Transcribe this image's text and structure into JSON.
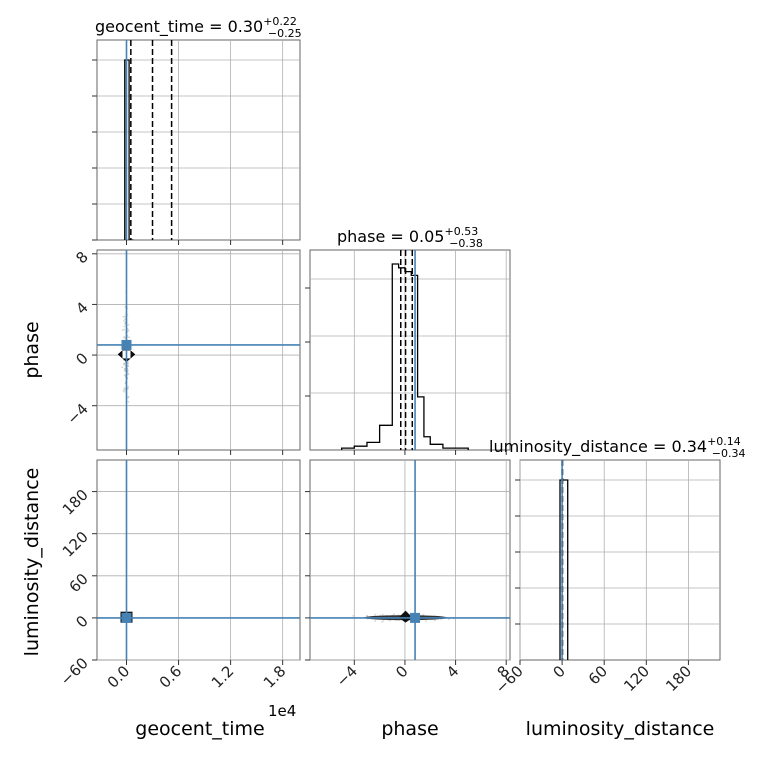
{
  "chart_data": {
    "type": "corner",
    "parameters": [
      "geocent_time",
      "phase",
      "luminosity_distance"
    ],
    "titles": [
      {
        "param": "geocent_time",
        "median": "0.30",
        "plus": "+0.22",
        "minus": "−0.25"
      },
      {
        "param": "phase",
        "median": "0.05",
        "plus": "+0.53",
        "minus": "−0.38"
      },
      {
        "param": "luminosity_distance",
        "median": "0.34",
        "plus": "+0.14",
        "minus": "−0.34"
      }
    ],
    "axis_labels": {
      "x": [
        "geocent_time",
        "phase",
        "luminosity_distance"
      ],
      "y_row2": "phase",
      "y_row3": "luminosity_distance"
    },
    "axis_offset_text": "1e4",
    "ranges": {
      "geocent_time": [
        -0.34,
        2.0
      ],
      "phase": [
        -7.5,
        8.3
      ],
      "luminosity_distance": [
        -60,
        225
      ]
    },
    "ticks": {
      "geocent_time": {
        "values": [
          0.0,
          0.6,
          1.2,
          1.8
        ],
        "labels": [
          "0.0",
          "0.6",
          "1.2",
          "1.8"
        ]
      },
      "phase": {
        "values": [
          -4,
          0,
          4,
          8
        ],
        "labels": [
          "−4",
          "0",
          "4",
          "8"
        ]
      },
      "luminosity_distance_y": {
        "values": [
          -60,
          0,
          60,
          120,
          180
        ],
        "labels": [
          "−60",
          "0",
          "60",
          "120",
          "180"
        ]
      },
      "luminosity_distance_x": {
        "values": [
          -60,
          0,
          60,
          120,
          180
        ],
        "labels": [
          "−60",
          "0",
          "60",
          "120",
          "180"
        ]
      }
    },
    "truths": {
      "geocent_time": 0.0,
      "phase": 0.8,
      "luminosity_distance": 0.0
    },
    "quantile_lines": {
      "geocent_time": [
        0.05,
        0.3,
        0.52
      ],
      "phase": [
        -0.33,
        0.05,
        0.58
      ],
      "luminosity_distance": [
        0.0,
        0.34,
        0.48
      ]
    },
    "histograms": {
      "geocent_time": {
        "edges": [
          -0.02,
          0.03,
          0.08
        ],
        "counts": [
          1.0,
          0.0
        ]
      },
      "phase": {
        "edges": [
          -5.0,
          -4.0,
          -3.0,
          -2.0,
          -1.0,
          -0.5,
          0.0,
          0.5,
          1.0,
          1.5,
          2.0,
          3.0,
          4.0,
          5.0
        ],
        "counts": [
          0.01,
          0.02,
          0.04,
          0.13,
          0.98,
          0.96,
          0.94,
          0.92,
          0.28,
          0.07,
          0.03,
          0.01,
          0.01
        ]
      },
      "luminosity_distance": {
        "edges": [
          -3,
          2,
          8
        ],
        "counts": [
          1.0,
          1.0
        ]
      }
    },
    "grid": true,
    "colors": {
      "truth": "#4682b4",
      "hist": "#000000",
      "grid": "#b0b0b0",
      "samples": "#bbbbbb"
    }
  }
}
